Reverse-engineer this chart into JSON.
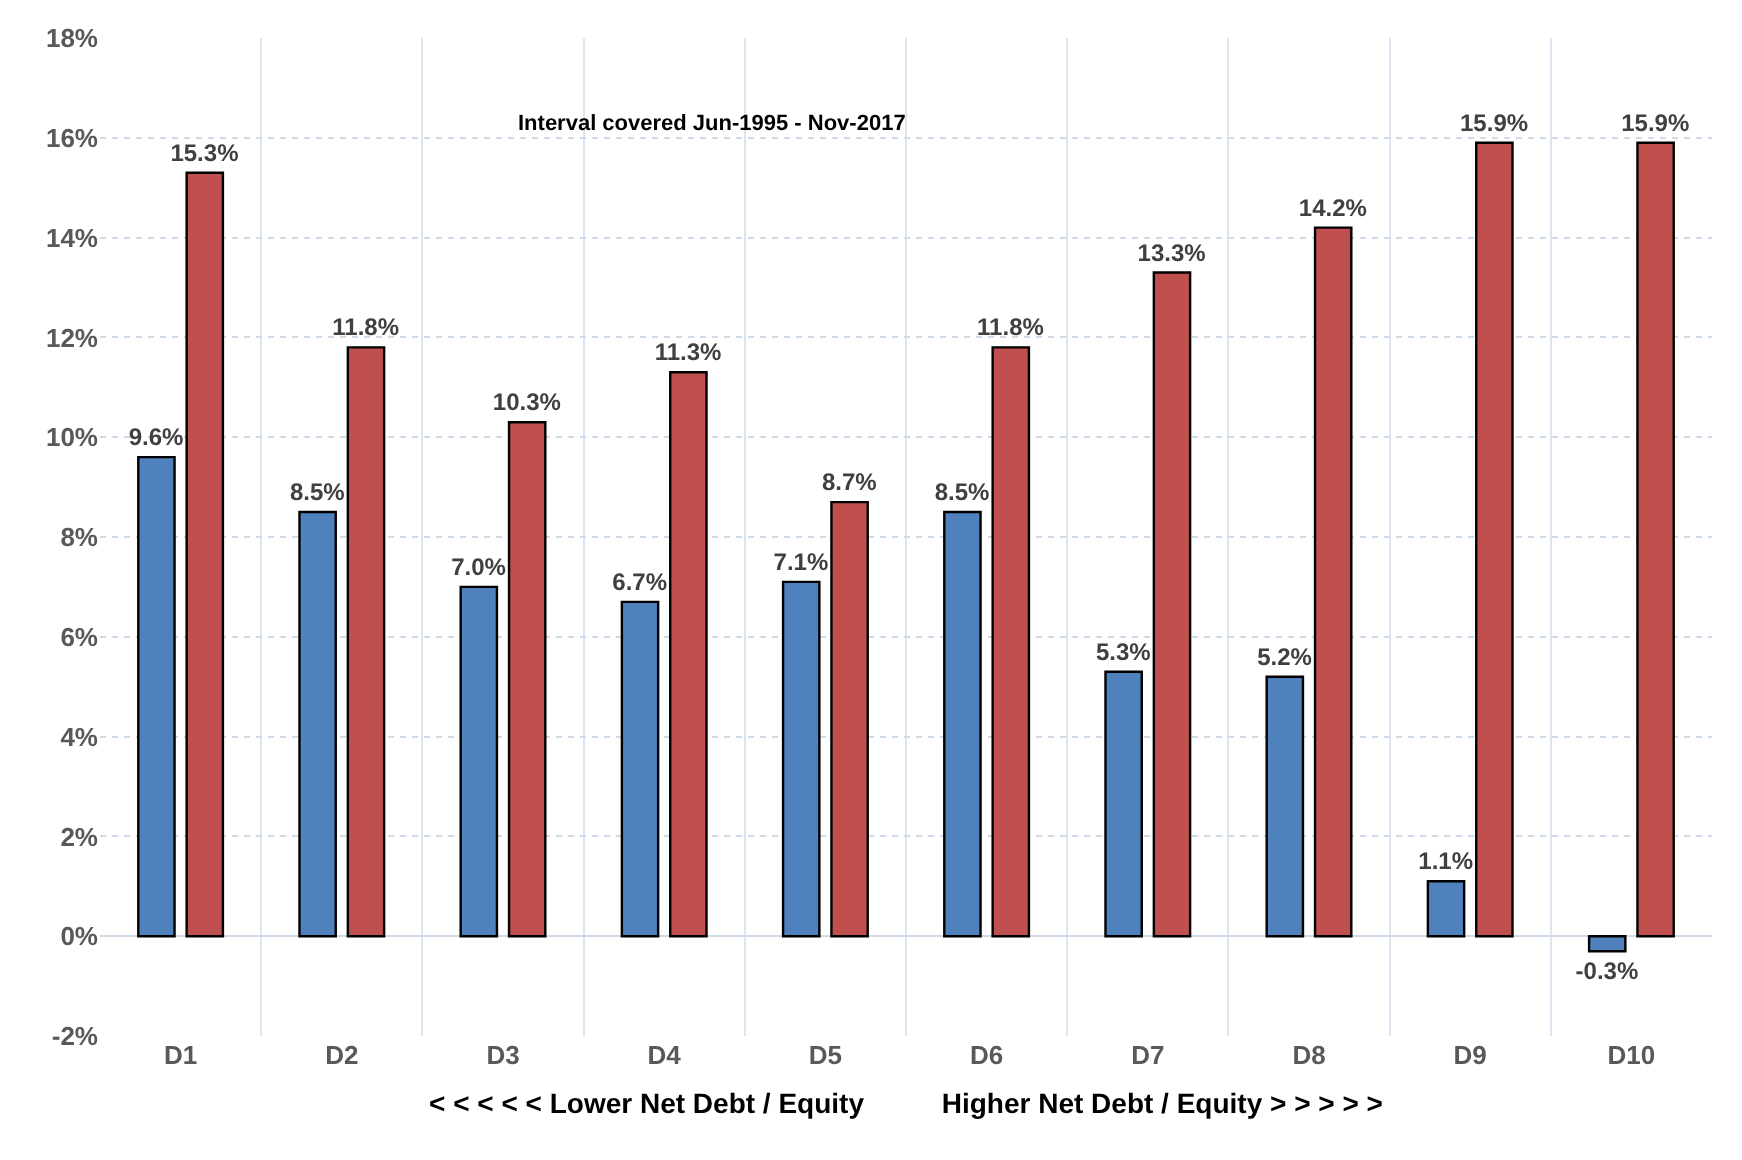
{
  "chart_data": {
    "type": "bar",
    "xlabel": "< < < < < Lower Net Debt / Equity          Higher Net Debt / Equity > > > > >",
    "annotations": [
      "Interval covered Jun-1995 - Nov-2017"
    ],
    "categories": [
      "D1",
      "D2",
      "D3",
      "D4",
      "D5",
      "D6",
      "D7",
      "D8",
      "D9",
      "D10"
    ],
    "series": [
      {
        "color": "#4f81bd",
        "values": [
          9.6,
          8.5,
          7.0,
          6.7,
          7.1,
          8.5,
          5.3,
          5.2,
          1.1,
          -0.3
        ],
        "value_labels": [
          "9.6%",
          "8.5%",
          "7.0%",
          "6.7%",
          "7.1%",
          "8.5%",
          "5.3%",
          "5.2%",
          "1.1%",
          "-0.3%"
        ]
      },
      {
        "color": "#c0504d",
        "values": [
          15.3,
          11.8,
          10.3,
          11.3,
          8.7,
          11.8,
          13.3,
          14.2,
          15.9,
          15.9
        ],
        "value_labels": [
          "15.3%",
          "11.8%",
          "10.3%",
          "11.3%",
          "8.7%",
          "11.8%",
          "13.3%",
          "14.2%",
          "15.9%",
          "15.9%"
        ]
      }
    ],
    "ylim": [
      -2,
      18
    ],
    "yticks": [
      {
        "value": -2,
        "label": "-2%"
      },
      {
        "value": 0,
        "label": "0%"
      },
      {
        "value": 2,
        "label": "2%"
      },
      {
        "value": 4,
        "label": "4%"
      },
      {
        "value": 6,
        "label": "6%"
      },
      {
        "value": 8,
        "label": "8%"
      },
      {
        "value": 10,
        "label": "10%"
      },
      {
        "value": 12,
        "label": "12%"
      },
      {
        "value": 14,
        "label": "14%"
      },
      {
        "value": 16,
        "label": "16%"
      },
      {
        "value": 18,
        "label": "18%"
      }
    ],
    "grid": true
  }
}
